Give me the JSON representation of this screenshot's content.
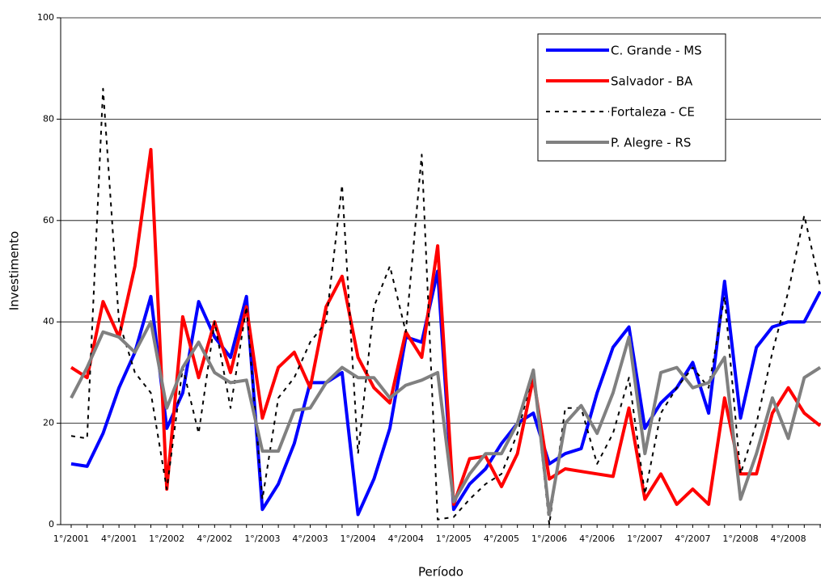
{
  "chart_data": {
    "type": "line",
    "xlabel": "Período",
    "ylabel": "Investimento",
    "categories": [
      "1°/2001",
      null,
      null,
      "4°/2001",
      null,
      null,
      "1°/2002",
      null,
      null,
      "4°/2002",
      null,
      null,
      "1°/2003",
      null,
      null,
      "4°/2003",
      null,
      null,
      "1°/2004",
      null,
      null,
      "4°/2004",
      null,
      null,
      "1°/2005",
      null,
      null,
      "4°/2005",
      null,
      null,
      "1°/2006",
      null,
      null,
      "4°/2006",
      null,
      null,
      "1°/2007",
      null,
      null,
      "4°/2007",
      null,
      null,
      "1°/2008",
      null,
      null,
      "4°/2008",
      null,
      null
    ],
    "ylim": [
      0,
      100
    ],
    "yticks": [
      0,
      20,
      40,
      60,
      80,
      100
    ],
    "grid": true,
    "series": [
      {
        "name": "C. Grande - MS",
        "color": "#0000ff",
        "dashed": false,
        "values": [
          12,
          11.5,
          18,
          27,
          34,
          45,
          19,
          26,
          44,
          37,
          33,
          45,
          3,
          8,
          16,
          28,
          28,
          30,
          2,
          9,
          19,
          37,
          36,
          50,
          3,
          8,
          11,
          16,
          20,
          22,
          12,
          14,
          15,
          26,
          35,
          39,
          19,
          24,
          27,
          32,
          22,
          48,
          21,
          35,
          39,
          40,
          40,
          46
        ]
      },
      {
        "name": "Salvador - BA",
        "color": "#ff0000",
        "dashed": false,
        "values": [
          31,
          29,
          44,
          37,
          51,
          74,
          7,
          41,
          29,
          40,
          30,
          43,
          21,
          31,
          34,
          27,
          43,
          49,
          33,
          27,
          24,
          38,
          33,
          55,
          4,
          13,
          13.5,
          7.5,
          14,
          29,
          9,
          11,
          10.5,
          10,
          9.5,
          23,
          5,
          10,
          4,
          7,
          4,
          25,
          10,
          10,
          22,
          27,
          22,
          19.5
        ]
      },
      {
        "name": "Fortaleza - CE",
        "color": "#000000",
        "dashed": true,
        "values": [
          17.5,
          17,
          86,
          40,
          30,
          26,
          7,
          31,
          18,
          40,
          23,
          43,
          5,
          25,
          29,
          36,
          40,
          67,
          14,
          43,
          51,
          38,
          73,
          1,
          1.5,
          5,
          8,
          10,
          18,
          30,
          0,
          23,
          23,
          12,
          18,
          29,
          6,
          22,
          27,
          31,
          27,
          45,
          10,
          20,
          34,
          46,
          61,
          47
        ]
      },
      {
        "name": "P. Alegre - RS",
        "color": "#808080",
        "dashed": false,
        "values": [
          25,
          31,
          38,
          37,
          34,
          40,
          23,
          31,
          36,
          30,
          28,
          28.5,
          14.5,
          14.5,
          22.5,
          23,
          28,
          31,
          29,
          29,
          25,
          27.5,
          28.5,
          30,
          4.5,
          10,
          14,
          14,
          20,
          30.5,
          2,
          20,
          23.5,
          18,
          26,
          37,
          14,
          30,
          31,
          27,
          28,
          33,
          5,
          14,
          25,
          17,
          29,
          31
        ]
      }
    ]
  }
}
